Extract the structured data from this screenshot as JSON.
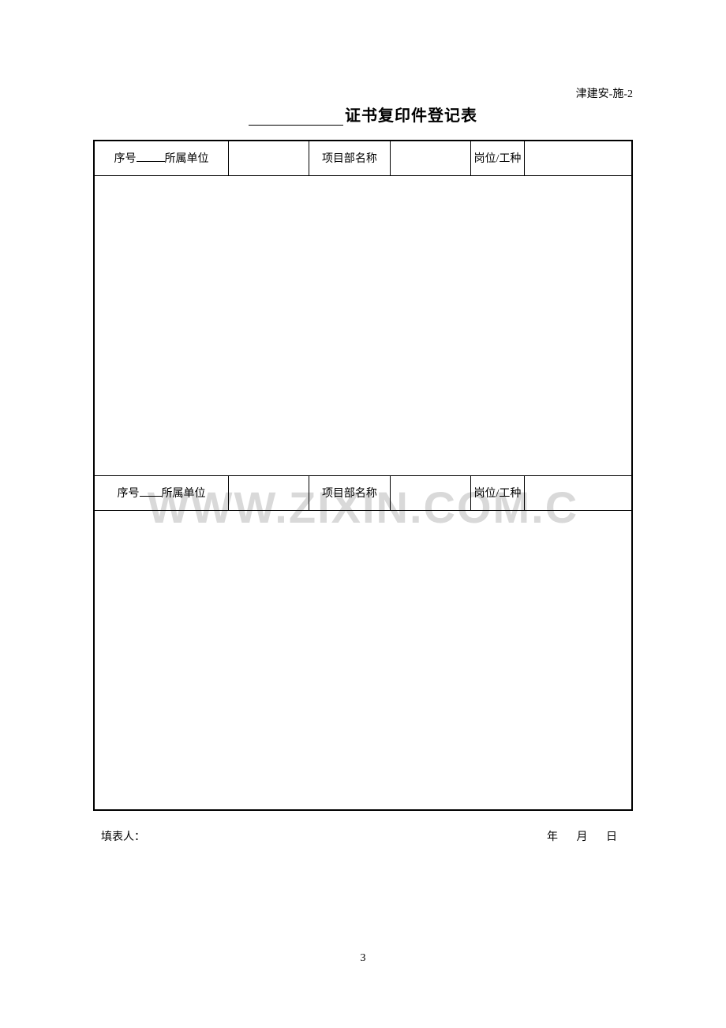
{
  "doc_code": "津建安-施-2",
  "title_suffix": "证书复印件登记表",
  "table": {
    "row1": {
      "seq_prefix": "序号",
      "unit_label": "所属单位",
      "project_label": "项目部名称",
      "position_label": "岗位/工种"
    },
    "row2": {
      "seq_prefix": "序号",
      "unit_label": "所属单位",
      "project_label": "项目部名称",
      "position_label": "岗位/工种"
    }
  },
  "footer": {
    "filler_label": "填表人：",
    "date_label": "年 月 日"
  },
  "page_number": "3",
  "watermark": "WWW.ZIXIN.COM.C",
  "colors": {
    "text": "#000000",
    "background": "#ffffff",
    "watermark": "#d9d9d9",
    "border": "#000000"
  }
}
